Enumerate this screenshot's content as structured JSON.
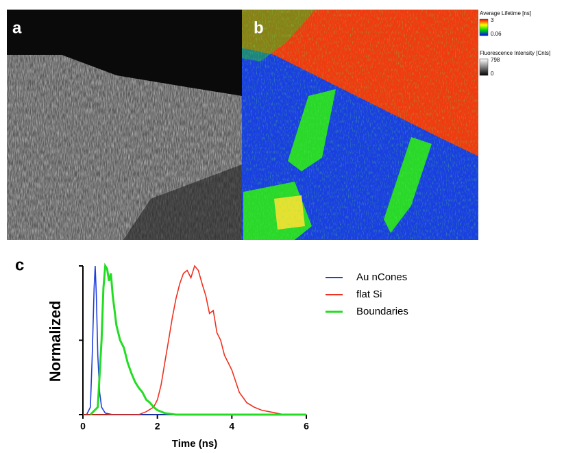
{
  "panels": [
    {
      "label": "a"
    },
    {
      "label": "b"
    },
    {
      "label": "c"
    }
  ],
  "colorbars": [
    {
      "title": "Average Lifetime [ns]",
      "ticks": [
        3,
        0.06
      ]
    },
    {
      "title": "Fluorescence Intensity [Cnts]",
      "ticks": [
        798,
        0
      ]
    }
  ],
  "chart_data": {
    "type": "line",
    "xlabel": "Time (ns)",
    "ylabel": "Normalized",
    "xlim": [
      0,
      6
    ],
    "xticks": [
      0,
      2,
      4,
      6
    ],
    "ylim": [
      0,
      1
    ],
    "yticks": [
      {
        "value": 0,
        "label": null
      },
      {
        "value": 0.5,
        "label": null
      },
      {
        "value": 1,
        "label": null
      }
    ],
    "series": [
      {
        "name": "Au nCones",
        "color": "#1f3fdc",
        "x": [
          0.1,
          0.2,
          0.25,
          0.3,
          0.33,
          0.36,
          0.4,
          0.45,
          0.5,
          0.6,
          0.8,
          1,
          2,
          3,
          4,
          5,
          6
        ],
        "values": [
          0,
          0.05,
          0.4,
          0.85,
          1,
          0.8,
          0.4,
          0.15,
          0.05,
          0.01,
          0,
          0,
          0,
          0,
          0,
          0,
          0
        ]
      },
      {
        "name": "flat Si",
        "color": "#f03020",
        "x": [
          0,
          1,
          1.5,
          1.7,
          1.9,
          2.0,
          2.1,
          2.2,
          2.3,
          2.4,
          2.5,
          2.6,
          2.7,
          2.8,
          2.9,
          3.0,
          3.1,
          3.2,
          3.3,
          3.4,
          3.5,
          3.6,
          3.7,
          3.8,
          3.9,
          4.0,
          4.2,
          4.4,
          4.6,
          4.8,
          5.0,
          5.2,
          5.4,
          6
        ],
        "values": [
          0,
          0,
          0,
          0.02,
          0.05,
          0.1,
          0.2,
          0.35,
          0.5,
          0.65,
          0.78,
          0.88,
          0.95,
          0.97,
          0.92,
          1,
          0.97,
          0.88,
          0.8,
          0.68,
          0.7,
          0.55,
          0.5,
          0.4,
          0.35,
          0.3,
          0.15,
          0.08,
          0.05,
          0.03,
          0.02,
          0.01,
          0,
          0
        ]
      },
      {
        "name": "Boundaries",
        "color": "#22dd22",
        "x": [
          0.2,
          0.4,
          0.5,
          0.55,
          0.6,
          0.65,
          0.7,
          0.75,
          0.8,
          0.9,
          1.0,
          1.1,
          1.2,
          1.3,
          1.4,
          1.5,
          1.6,
          1.7,
          1.8,
          1.9,
          2.0,
          2.2,
          2.5,
          3,
          4,
          6
        ],
        "values": [
          0,
          0.05,
          0.5,
          0.85,
          1,
          0.98,
          0.9,
          0.95,
          0.8,
          0.6,
          0.5,
          0.45,
          0.35,
          0.28,
          0.22,
          0.18,
          0.15,
          0.1,
          0.08,
          0.05,
          0.03,
          0.01,
          0,
          0,
          0,
          0
        ]
      }
    ]
  }
}
